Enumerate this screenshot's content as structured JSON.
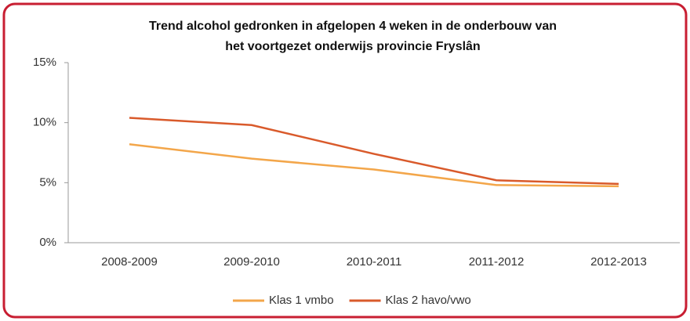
{
  "chart_data": {
    "type": "line",
    "title": [
      "Trend alcohol gedronken in afgelopen 4 weken in de onderbouw van",
      "het voortgezet onderwijs provincie Fryslân"
    ],
    "categories": [
      "2008-2009",
      "2009-2010",
      "2010-2011",
      "2011-2012",
      "2012-2013"
    ],
    "series": [
      {
        "name": "Klas 1 vmbo",
        "color": "#f3a64a",
        "values": [
          8.2,
          7.0,
          6.1,
          4.8,
          4.7
        ]
      },
      {
        "name": "Klas 2 havo/vwo",
        "color": "#d95a2b",
        "values": [
          10.4,
          9.8,
          7.4,
          5.2,
          4.9
        ]
      }
    ],
    "ylim": [
      0,
      15
    ],
    "yticks": [
      {
        "value": 0,
        "label": "0%"
      },
      {
        "value": 5,
        "label": "5%"
      },
      {
        "value": 10,
        "label": "10%"
      },
      {
        "value": 15,
        "label": "15%"
      }
    ],
    "legend": "bottom"
  }
}
